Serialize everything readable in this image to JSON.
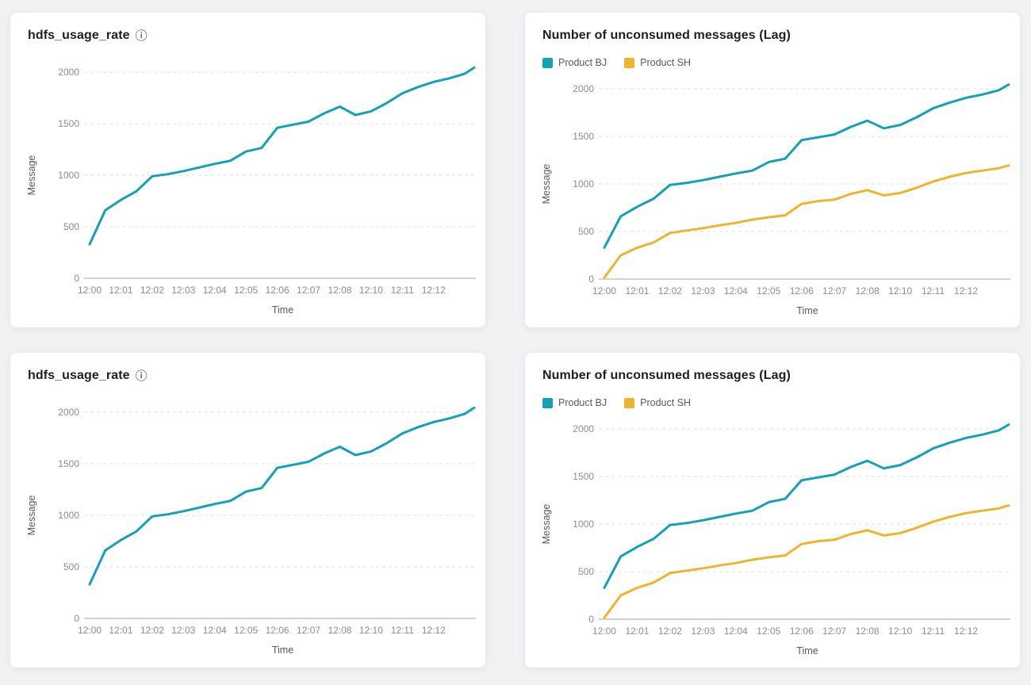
{
  "page": {
    "background_color": "#f1f2f4",
    "card_color": "#ffffff"
  },
  "colors": {
    "series_teal": "#12A1B5",
    "series_yellow": "#F0B42A",
    "gridline": "#dddddd",
    "axis_line": "#a6a6a6",
    "tick_label": "#8c8c8c",
    "axis_title": "#595959",
    "card_title": "#1f1f1f"
  },
  "chart_data": [
    {
      "type": "line",
      "title": "hdfs_usage_rate",
      "info_icon": "ⓘ",
      "show_legend": false,
      "xlabel": "Time",
      "ylabel": "Message",
      "ylim": [
        0,
        2100
      ],
      "y_ticks": [
        0,
        500,
        1000,
        1500,
        2000
      ],
      "grid": "horizontal-dashed",
      "legend_position": "none",
      "x_tick_labels": [
        "12:00",
        "12:01",
        "12:02",
        "12:03",
        "12:04",
        "12:05",
        "12:06",
        "12:07",
        "12:08",
        "12:10",
        "12:11",
        "12:12"
      ],
      "x_units": [
        0,
        0.5,
        1,
        1.5,
        2,
        2.5,
        3,
        3.5,
        4,
        4.5,
        5,
        5.5,
        6,
        6.5,
        7,
        7.5,
        8,
        8.5,
        9,
        9.5,
        10,
        10.5,
        11,
        11.5,
        12,
        12.3
      ],
      "series": [
        {
          "name": "hdfs_usage_rate",
          "color": "#12A1B5",
          "values": [
            330,
            660,
            760,
            845,
            990,
            1010,
            1040,
            1075,
            1110,
            1140,
            1230,
            1265,
            1460,
            1490,
            1520,
            1600,
            1665,
            1585,
            1620,
            1700,
            1795,
            1855,
            1905,
            1940,
            1985,
            2045
          ]
        }
      ]
    },
    {
      "type": "line",
      "title": "Number of unconsumed messages (Lag)",
      "show_legend": true,
      "xlabel": "Time",
      "ylabel": "Message",
      "ylim": [
        0,
        2100
      ],
      "y_ticks": [
        0,
        500,
        1000,
        1500,
        2000
      ],
      "grid": "horizontal-dashed",
      "legend_position": "top-left",
      "x_tick_labels": [
        "12:00",
        "12:01",
        "12:02",
        "12:03",
        "12:04",
        "12:05",
        "12:06",
        "12:07",
        "12:08",
        "12:10",
        "12:11",
        "12:12"
      ],
      "x_units": [
        0,
        0.5,
        1,
        1.5,
        2,
        2.5,
        3,
        3.5,
        4,
        4.5,
        5,
        5.5,
        6,
        6.5,
        7,
        7.5,
        8,
        8.5,
        9,
        9.5,
        10,
        10.5,
        11,
        11.5,
        12,
        12.3
      ],
      "series": [
        {
          "name": "Product BJ",
          "color": "#12A1B5",
          "values": [
            330,
            660,
            760,
            845,
            990,
            1010,
            1040,
            1075,
            1110,
            1140,
            1230,
            1265,
            1460,
            1490,
            1520,
            1600,
            1665,
            1585,
            1620,
            1700,
            1795,
            1855,
            1905,
            1940,
            1985,
            2045
          ]
        },
        {
          "name": "Product SH",
          "color": "#F0B42A",
          "values": [
            15,
            250,
            330,
            385,
            485,
            510,
            535,
            565,
            590,
            625,
            650,
            670,
            790,
            820,
            835,
            895,
            935,
            880,
            905,
            960,
            1025,
            1075,
            1115,
            1140,
            1165,
            1195
          ]
        }
      ]
    },
    {
      "type": "line",
      "title": "hdfs_usage_rate",
      "info_icon": "ⓘ",
      "show_legend": false,
      "xlabel": "Time",
      "ylabel": "Message",
      "ylim": [
        0,
        2100
      ],
      "y_ticks": [
        0,
        500,
        1000,
        1500,
        2000
      ],
      "grid": "horizontal-dashed",
      "legend_position": "none",
      "x_tick_labels": [
        "12:00",
        "12:01",
        "12:02",
        "12:03",
        "12:04",
        "12:05",
        "12:06",
        "12:07",
        "12:08",
        "12:10",
        "12:11",
        "12:12"
      ],
      "x_units": [
        0,
        0.5,
        1,
        1.5,
        2,
        2.5,
        3,
        3.5,
        4,
        4.5,
        5,
        5.5,
        6,
        6.5,
        7,
        7.5,
        8,
        8.5,
        9,
        9.5,
        10,
        10.5,
        11,
        11.5,
        12,
        12.3
      ],
      "series": [
        {
          "name": "hdfs_usage_rate",
          "color": "#12A1B5",
          "values": [
            330,
            660,
            760,
            845,
            990,
            1010,
            1040,
            1075,
            1110,
            1140,
            1230,
            1265,
            1460,
            1490,
            1520,
            1600,
            1665,
            1585,
            1620,
            1700,
            1795,
            1855,
            1905,
            1940,
            1985,
            2045
          ]
        }
      ]
    },
    {
      "type": "line",
      "title": "Number of unconsumed messages (Lag)",
      "show_legend": true,
      "xlabel": "Time",
      "ylabel": "Message",
      "ylim": [
        0,
        2100
      ],
      "y_ticks": [
        0,
        500,
        1000,
        1500,
        2000
      ],
      "grid": "horizontal-dashed",
      "legend_position": "top-left",
      "x_tick_labels": [
        "12:00",
        "12:01",
        "12:02",
        "12:03",
        "12:04",
        "12:05",
        "12:06",
        "12:07",
        "12:08",
        "12:10",
        "12:11",
        "12:12"
      ],
      "x_units": [
        0,
        0.5,
        1,
        1.5,
        2,
        2.5,
        3,
        3.5,
        4,
        4.5,
        5,
        5.5,
        6,
        6.5,
        7,
        7.5,
        8,
        8.5,
        9,
        9.5,
        10,
        10.5,
        11,
        11.5,
        12,
        12.3
      ],
      "series": [
        {
          "name": "Product BJ",
          "color": "#12A1B5",
          "values": [
            330,
            660,
            760,
            845,
            990,
            1010,
            1040,
            1075,
            1110,
            1140,
            1230,
            1265,
            1460,
            1490,
            1520,
            1600,
            1665,
            1585,
            1620,
            1700,
            1795,
            1855,
            1905,
            1940,
            1985,
            2045
          ]
        },
        {
          "name": "Product SH",
          "color": "#F0B42A",
          "values": [
            15,
            250,
            330,
            385,
            485,
            510,
            535,
            565,
            590,
            625,
            650,
            670,
            790,
            820,
            835,
            895,
            935,
            880,
            905,
            960,
            1025,
            1075,
            1115,
            1140,
            1165,
            1195
          ]
        }
      ]
    }
  ]
}
